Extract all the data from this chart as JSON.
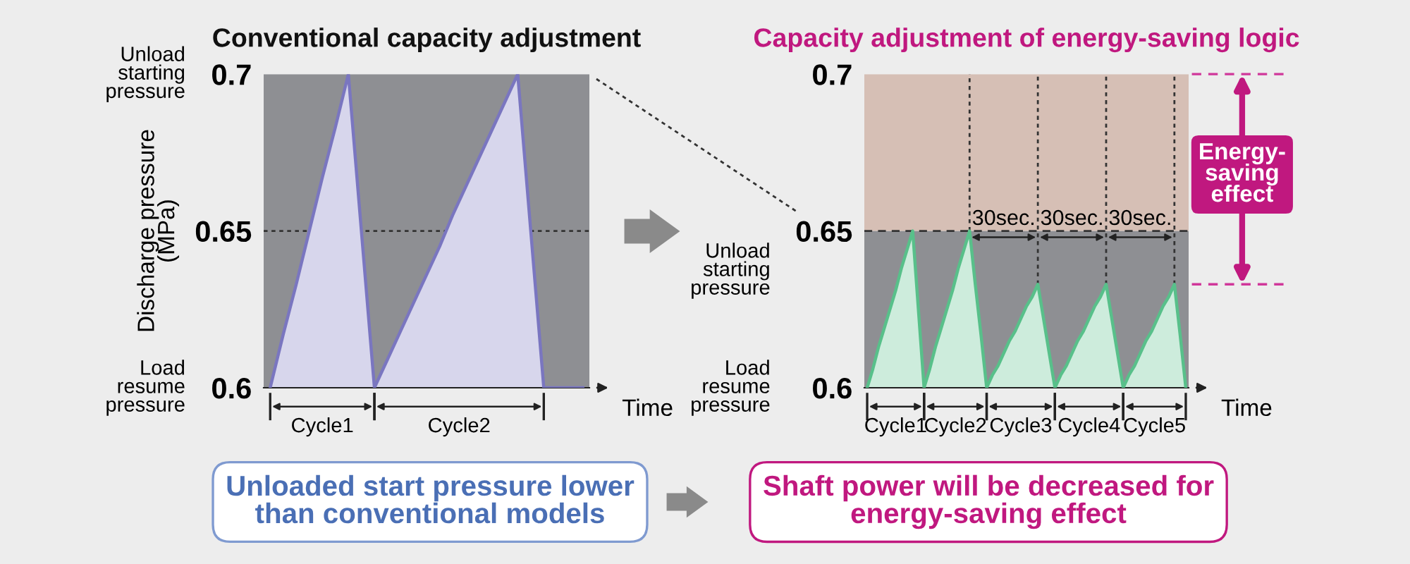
{
  "chart_data": [
    {
      "type": "area",
      "title": "Conventional capacity adjustment",
      "ylabel": "Discharge pressure\n(MPa)",
      "xlabel": "Time",
      "categories": [
        null,
        null,
        null,
        null,
        null,
        null,
        null,
        null,
        null,
        null,
        null,
        null,
        null,
        null,
        null,
        null,
        null,
        null,
        null,
        null,
        null,
        null,
        null,
        null,
        null
      ],
      "ylim": [
        0.6,
        0.7
      ],
      "yticks": [
        0.6,
        0.65,
        0.7
      ],
      "tick_labels": "y",
      "legend": false,
      "grid": false,
      "series": [
        {
          "color": "#d7d6ec",
          "values": [
            0.6,
            0.617,
            0.633,
            0.65,
            0.667,
            0.683,
            0.7,
            0.65,
            0.6,
            0.609,
            0.618,
            0.627,
            0.636,
            0.645,
            0.655,
            0.664,
            0.673,
            0.682,
            0.691,
            0.7,
            0.65,
            0.6,
            0.6,
            0.6,
            0.6
          ]
        }
      ],
      "bands": [
        {
          "axis": "y",
          "from": 0.6,
          "to": 0.7,
          "color": "#8e8f93"
        }
      ],
      "ref_lines": [
        {
          "axis": "y",
          "value": 0.65,
          "color": "#333333",
          "line_style": "dotted"
        }
      ],
      "annotations": [
        "Unload\nstarting\npressure",
        "Load\nresume\npressure",
        "Cycle1",
        "Cycle2",
        "Unloaded start pressure lower\nthan conventional models"
      ]
    },
    {
      "type": "area",
      "title": "Capacity adjustment of energy-saving logic",
      "xlabel": "Time",
      "categories": [
        null,
        null,
        null,
        null,
        null,
        null,
        null,
        null,
        null,
        null,
        null,
        null,
        null,
        null,
        null,
        null,
        null,
        null,
        null,
        null,
        null,
        null,
        null,
        null,
        null,
        null,
        null,
        null,
        null,
        null,
        null,
        null,
        null,
        null,
        null,
        null,
        null,
        null,
        null,
        null,
        null,
        null,
        null,
        null,
        null,
        null,
        null,
        null,
        null,
        null,
        null,
        null,
        null,
        null,
        null,
        null,
        null
      ],
      "ylim": [
        0.6,
        0.7
      ],
      "yticks": [
        0.6,
        0.65,
        0.7
      ],
      "tick_labels": "y",
      "legend": false,
      "grid": false,
      "series": [
        {
          "color": "#cdecdc",
          "values": [
            0.6,
            0.606,
            0.613,
            0.619,
            0.625,
            0.631,
            0.638,
            0.644,
            0.65,
            0.625,
            0.6,
            0.606,
            0.613,
            0.619,
            0.625,
            0.631,
            0.638,
            0.644,
            0.65,
            0.633,
            0.617,
            0.6,
            0.604,
            0.607,
            0.611,
            0.615,
            0.618,
            0.622,
            0.626,
            0.629,
            0.633,
            0.622,
            0.611,
            0.6,
            0.604,
            0.607,
            0.611,
            0.615,
            0.618,
            0.622,
            0.626,
            0.629,
            0.633,
            0.622,
            0.611,
            0.6,
            0.604,
            0.607,
            0.611,
            0.615,
            0.618,
            0.622,
            0.626,
            0.629,
            0.633,
            0.617,
            0.6
          ]
        }
      ],
      "bands": [
        {
          "axis": "y",
          "from": 0.6,
          "to": 0.65,
          "color": "#8e8f93"
        },
        {
          "axis": "y",
          "from": 0.65,
          "to": 0.7,
          "color": "#d6bfb5"
        }
      ],
      "ref_lines": [
        {
          "axis": "y",
          "value": 0.65,
          "color": "#333333",
          "line_style": "dashed"
        }
      ],
      "annotations": [
        "Unload\nstarting\npressure",
        "Load\nresume\npressure",
        "Cycle1",
        "Cycle2",
        "Cycle3",
        "Cycle4",
        "Cycle5",
        "30sec.",
        "30sec.",
        "30sec.",
        "Energy-\nsaving\neffect",
        "Shaft power will be decreased for\nenergy-saving effect"
      ]
    }
  ]
}
